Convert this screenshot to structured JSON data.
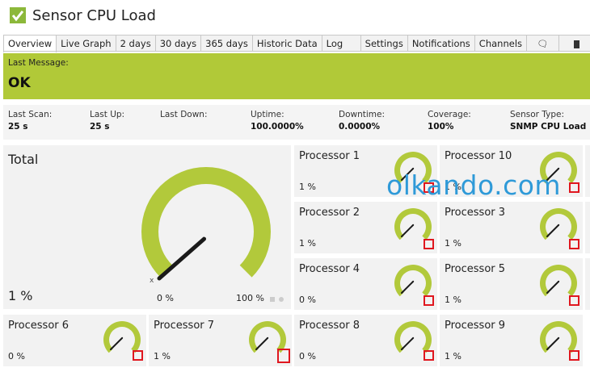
{
  "title": "Sensor CPU Load",
  "tabs": [
    {
      "label": "Overview"
    },
    {
      "label": "Live Graph"
    },
    {
      "label": "2 days"
    },
    {
      "label": "30 days"
    },
    {
      "label": "365 days"
    },
    {
      "label": "Historic Data"
    },
    {
      "label": "Log"
    },
    {
      "label": "Settings"
    },
    {
      "label": "Notifications"
    },
    {
      "label": "Channels"
    },
    {
      "label": ""
    },
    {
      "label": ""
    }
  ],
  "status": {
    "label": "Last Message:",
    "value": "OK"
  },
  "stats": [
    {
      "label": "Last Scan:",
      "value": "25 s"
    },
    {
      "label": "Last Up:",
      "value": "25 s"
    },
    {
      "label": "Last Down:",
      "value": ""
    },
    {
      "label": "Uptime:",
      "value": "100.0000%"
    },
    {
      "label": "Downtime:",
      "value": "0.0000%"
    },
    {
      "label": "Coverage:",
      "value": "100%"
    },
    {
      "label": "Sensor Type:",
      "value": "SNMP CPU Load"
    }
  ],
  "total": {
    "name": "Total",
    "value": "1 %",
    "min": "0 %",
    "max": "100 %",
    "axis_mark": "x",
    "level": 0.01
  },
  "processors": [
    {
      "name": "Processor 1",
      "value": "1 %",
      "level": 0.01
    },
    {
      "name": "Processor 10",
      "value": "1 %",
      "level": 0.01
    },
    {
      "name": "Processor 2",
      "value": "1 %",
      "level": 0.01
    },
    {
      "name": "Processor 3",
      "value": "1 %",
      "level": 0.01
    },
    {
      "name": "Processor 4",
      "value": "0 %",
      "level": 0.0
    },
    {
      "name": "Processor 5",
      "value": "1 %",
      "level": 0.01
    },
    {
      "name": "Processor 6",
      "value": "0 %",
      "level": 0.0
    },
    {
      "name": "Processor 7",
      "value": "1 %",
      "level": 0.01
    },
    {
      "name": "Processor 8",
      "value": "0 %",
      "level": 0.0
    },
    {
      "name": "Processor 9",
      "value": "1 %",
      "level": 0.01
    }
  ],
  "watermark": "olkando.com",
  "colors": {
    "accent": "#b1c938",
    "gauge": "#b2c93b",
    "needle": "#1a1a1a",
    "marker": "#e0171f",
    "watermark": "#2f9ad8"
  }
}
